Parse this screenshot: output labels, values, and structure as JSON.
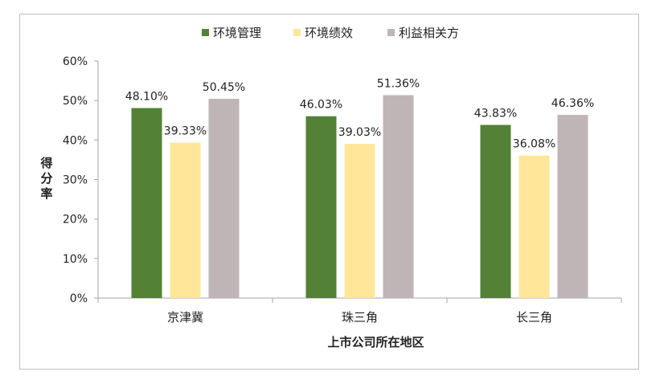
{
  "chart_data": {
    "type": "bar",
    "title": "",
    "xlabel": "上市公司所在地区",
    "ylabel": "得分率",
    "categories": [
      "京津冀",
      "珠三角",
      "长三角"
    ],
    "series": [
      {
        "name": "环境管理",
        "values": [
          48.1,
          46.03,
          43.83
        ],
        "labels": [
          "48.10%",
          "46.03%",
          "43.83%"
        ],
        "color": "#538135"
      },
      {
        "name": "环境绩效",
        "values": [
          39.33,
          39.03,
          36.08
        ],
        "labels": [
          "39.33%",
          "39.03%",
          "36.08%"
        ],
        "color": "#ffe699"
      },
      {
        "name": "利益相关方",
        "values": [
          50.45,
          51.36,
          46.36
        ],
        "labels": [
          "50.45%",
          "51.36%",
          "46.36%"
        ],
        "color": "#bfb5b7"
      }
    ],
    "ylim": [
      0,
      60
    ],
    "yticks": [
      "0%",
      "10%",
      "20%",
      "30%",
      "40%",
      "50%",
      "60%"
    ],
    "grid": false,
    "legend_position": "top"
  }
}
